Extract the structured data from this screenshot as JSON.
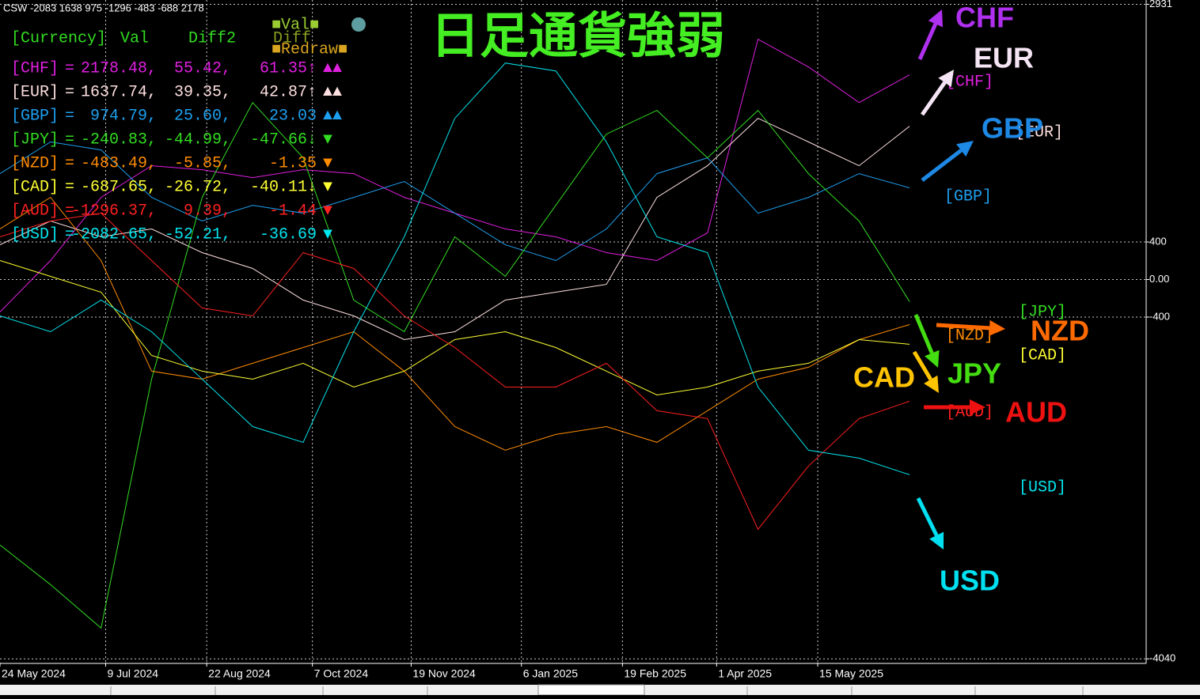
{
  "chart_data": {
    "type": "line",
    "title": "日足通貨強弱",
    "subtitle": "CSW -2083 1638 975 -1296 -483 -688 2178",
    "x": [
      "2024-05-24",
      "2024-06-15",
      "2024-07-07",
      "2024-07-29",
      "2024-08-20",
      "2024-09-11",
      "2024-10-03",
      "2024-10-25",
      "2024-11-16",
      "2024-12-08",
      "2024-12-30",
      "2025-01-21",
      "2025-02-12",
      "2025-03-06",
      "2025-03-28",
      "2025-04-19",
      "2025-05-11",
      "2025-06-02",
      "2025-06-24"
    ],
    "xlim": [
      "2024-05-24",
      "2025-10-05"
    ],
    "xticks": [
      {
        "value": "2024-05-24",
        "label": "24 May 2024"
      },
      {
        "value": "2024-07-09",
        "label": "9 Jul 2024"
      },
      {
        "value": "2024-08-22",
        "label": "22 Aug 2024"
      },
      {
        "value": "2024-10-07",
        "label": "7 Oct 2024"
      },
      {
        "value": "2024-11-19",
        "label": "19 Nov 2024"
      },
      {
        "value": "2025-01-06",
        "label": "6 Jan 2025"
      },
      {
        "value": "2025-02-19",
        "label": "19 Feb 2025"
      },
      {
        "value": "2025-04-01",
        "label": "1 Apr 2025"
      },
      {
        "value": "2025-05-15",
        "label": "15 May 2025"
      }
    ],
    "ylim": [
      -4080,
      2977
    ],
    "yticks": [
      2931,
      400,
      {
        "value": 0,
        "label": "0.00"
      },
      -400,
      -4040
    ],
    "grid": true,
    "series": [
      {
        "name": "CHF",
        "color": "#e020e0",
        "values": [
          -345,
          202,
          875,
          1212,
          1170,
          1086,
          1170,
          1128,
          875,
          707,
          539,
          455,
          286,
          202,
          497,
          2559,
          2264,
          1885,
          2180
        ]
      },
      {
        "name": "EUR",
        "color": "#ffe0e0",
        "values": [
          370,
          623,
          455,
          539,
          286,
          118,
          -219,
          -387,
          -640,
          -556,
          -219,
          -135,
          -51,
          875,
          1212,
          1717,
          1465,
          1212,
          1633
        ]
      },
      {
        "name": "GBP",
        "color": "#1ea0f0",
        "values": [
          1128,
          1465,
          1380,
          875,
          623,
          791,
          707,
          875,
          1044,
          707,
          370,
          202,
          539,
          1128,
          1296,
          707,
          875,
          1128,
          976
        ]
      },
      {
        "name": "JPY",
        "color": "#33dd22",
        "values": [
          -2828,
          -3249,
          -3712,
          -1061,
          875,
          1885,
          1296,
          -219,
          -556,
          455,
          34,
          791,
          1549,
          1801,
          1296,
          1801,
          1128,
          623,
          -236
        ]
      },
      {
        "name": "NZD",
        "color": "#ff8c00",
        "values": [
          539,
          875,
          202,
          -976,
          -1061,
          -892,
          -724,
          -556,
          -976,
          -1566,
          -1818,
          -1650,
          -1566,
          -1734,
          -1397,
          -1061,
          -934,
          -640,
          -480
        ]
      },
      {
        "name": "CAD",
        "color": "#ffff33",
        "values": [
          202,
          34,
          -135,
          -808,
          -976,
          -1061,
          -892,
          -1145,
          -976,
          -640,
          -556,
          -724,
          -976,
          -1229,
          -1145,
          -976,
          -892,
          -640,
          -690
        ]
      },
      {
        "name": "AUD",
        "color": "#ff2020",
        "values": [
          455,
          623,
          707,
          202,
          -303,
          -387,
          286,
          118,
          -387,
          -724,
          -1145,
          -1145,
          -892,
          -1397,
          -1481,
          -2660,
          -1986,
          -1481,
          -1296
        ]
      },
      {
        "name": "USD",
        "color": "#00e5ee",
        "values": [
          -387,
          -556,
          -219,
          -556,
          -1061,
          -1566,
          -1734,
          -556,
          455,
          1717,
          2306,
          2222,
          1465,
          455,
          286,
          -1145,
          -1818,
          -1902,
          -2079
        ]
      }
    ],
    "end_labels": [
      "[CHF]",
      "[EUR]",
      "[GBP]",
      "[JPY]",
      "[NZD]",
      "[CAD]",
      "[AUD]",
      "[USD]"
    ],
    "annotations": [
      {
        "text": "CHF",
        "color": "#b030f0"
      },
      {
        "text": "EUR",
        "color": "#f4e4f4"
      },
      {
        "text": "GBP",
        "color": "#1e88e5"
      },
      {
        "text": "JPY",
        "color": "#44dd11"
      },
      {
        "text": "NZD",
        "color": "#ff6a00"
      },
      {
        "text": "CAD",
        "color": "#ffc400"
      },
      {
        "text": "AUD",
        "color": "#ee1111"
      },
      {
        "text": "USD",
        "color": "#00e0f0"
      }
    ]
  },
  "panel": {
    "header": [
      "[Currency]",
      "Val",
      "Diff2",
      "Diff"
    ],
    "buttons": [
      "■Val■",
      "■Redraw■"
    ],
    "rows": [
      {
        "label": "[CHF]",
        "eq": "=",
        "val": "2178.48,",
        "diff2": "55.42,",
        "diff": "61.35↑",
        "marks": "▲▲"
      },
      {
        "label": "[EUR]",
        "eq": "=",
        "val": "1637.74,",
        "diff2": "39.35,",
        "diff": "42.87↑",
        "marks": "▲▲"
      },
      {
        "label": "[GBP]",
        "eq": "=",
        "val": "974.79,",
        "diff2": "25.60,",
        "diff": "23.03",
        "marks": "▲▲"
      },
      {
        "label": "[JPY]",
        "eq": "=",
        "val": "-240.83,",
        "diff2": "-44.99,",
        "diff": "-47.66↓",
        "marks": "▼"
      },
      {
        "label": "[NZD]",
        "eq": "=",
        "val": "-483.49,",
        "diff2": "-5.85,",
        "diff": "-1.35",
        "marks": "▼"
      },
      {
        "label": "[CAD]",
        "eq": "=",
        "val": "-687.65,",
        "diff2": "-26.72,",
        "diff": "-40.11↓",
        "marks": "▼"
      },
      {
        "label": "[AUD]",
        "eq": "=",
        "val": "-1296.37,",
        "diff2": "9.39,",
        "diff": "-1.44",
        "marks": "▼"
      },
      {
        "label": "[USD]",
        "eq": "=",
        "val": "-2082.65,",
        "diff2": "-52.21,",
        "diff": "-36.69",
        "marks": "▼"
      }
    ]
  }
}
